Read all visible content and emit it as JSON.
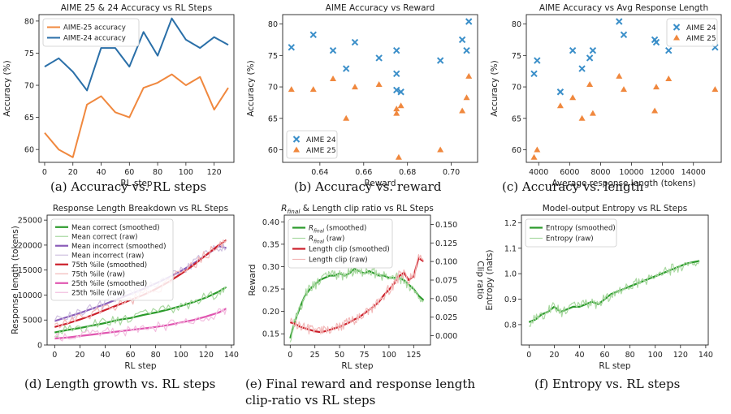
{
  "chart_data": [
    {
      "type": "line",
      "title": "AIME 25 & 24 Accuracy vs RL Steps",
      "xlabel": "RL step",
      "ylabel": "Accuracy (%)",
      "xlim": [
        -4,
        134
      ],
      "ylim": [
        58,
        81
      ],
      "xticks": [
        0,
        20,
        40,
        60,
        80,
        100,
        120
      ],
      "yticks": [
        60,
        65,
        70,
        75,
        80
      ],
      "legend": "top-left",
      "x": [
        0,
        10,
        20,
        30,
        40,
        50,
        60,
        70,
        80,
        90,
        100,
        110,
        120,
        130
      ],
      "series": [
        {
          "name": "AIME-25 accuracy",
          "color": "#f0883e",
          "values": [
            62.6,
            60.0,
            58.8,
            67.0,
            68.3,
            65.8,
            65.0,
            69.6,
            70.4,
            71.7,
            70.0,
            71.3,
            66.2,
            69.6
          ]
        },
        {
          "name": "AIME-24 accuracy",
          "color": "#2a6fa8",
          "values": [
            72.9,
            74.2,
            72.1,
            69.2,
            75.8,
            75.8,
            72.9,
            78.3,
            74.6,
            80.4,
            77.1,
            75.8,
            77.5,
            76.3
          ]
        }
      ],
      "caption": "(a) Accuracy vs. RL steps"
    },
    {
      "type": "scatter",
      "title": "AIME Accuracy vs Reward",
      "xlabel": "Reward",
      "ylabel": "Accuracy (%)",
      "xlim": [
        0.623,
        0.712
      ],
      "ylim": [
        58,
        81.5
      ],
      "xticks": [
        0.64,
        0.66,
        0.68,
        0.7
      ],
      "xtick_labels": [
        "0.64",
        "0.66",
        "0.68",
        "0.70"
      ],
      "yticks": [
        60,
        65,
        70,
        75,
        80
      ],
      "legend": "bottom-left",
      "series": [
        {
          "name": "AIME 24",
          "marker": "x",
          "color": "#3b8fc9",
          "x": [
            0.627,
            0.637,
            0.646,
            0.652,
            0.656,
            0.667,
            0.675,
            0.675,
            0.677,
            0.695,
            0.705,
            0.707,
            0.708,
            0.675
          ],
          "y": [
            76.3,
            78.3,
            75.8,
            72.9,
            77.1,
            74.6,
            75.8,
            72.1,
            69.2,
            74.2,
            77.5,
            75.8,
            80.4,
            69.5
          ]
        },
        {
          "name": "AIME 25",
          "marker": "^",
          "color": "#f0883e",
          "x": [
            0.627,
            0.637,
            0.646,
            0.652,
            0.656,
            0.667,
            0.675,
            0.676,
            0.677,
            0.695,
            0.705,
            0.707,
            0.708,
            0.675
          ],
          "y": [
            69.6,
            69.6,
            71.3,
            65.0,
            70.0,
            70.4,
            65.8,
            58.8,
            67.0,
            60.0,
            66.2,
            68.3,
            71.7,
            66.5
          ]
        }
      ],
      "caption": "(b) Accuracy vs. reward"
    },
    {
      "type": "scatter",
      "title": "AIME Accuracy vs Avg Response Length",
      "xlabel": "Average response length (tokens)",
      "ylabel": "Accuracy (%)",
      "xlim": [
        3200,
        15800
      ],
      "ylim": [
        58,
        81.5
      ],
      "xticks": [
        4000,
        6000,
        8000,
        10000,
        12000,
        14000
      ],
      "xtick_labels": [
        "4000",
        "6000",
        "8000",
        "10000",
        "12000",
        "14000"
      ],
      "yticks": [
        60,
        65,
        70,
        75,
        80
      ],
      "legend": "top-right",
      "series": [
        {
          "name": "AIME 24",
          "marker": "x",
          "color": "#3b8fc9",
          "x": [
            3700,
            3900,
            5400,
            6200,
            6800,
            7300,
            7500,
            9200,
            9500,
            11500,
            11600,
            12400,
            15400
          ],
          "y": [
            72.1,
            74.2,
            69.2,
            75.8,
            72.9,
            74.6,
            75.8,
            80.4,
            78.3,
            77.5,
            77.1,
            75.8,
            76.3
          ]
        },
        {
          "name": "AIME 25",
          "marker": "^",
          "color": "#f0883e",
          "x": [
            3700,
            3900,
            5400,
            6200,
            6800,
            7300,
            7500,
            9200,
            9500,
            11500,
            11600,
            12400,
            15400
          ],
          "y": [
            58.8,
            60.0,
            67.0,
            68.3,
            65.0,
            70.4,
            65.8,
            71.7,
            69.6,
            66.2,
            70.0,
            71.3,
            69.6
          ]
        }
      ],
      "caption": "(c) Accuracy vs. length"
    },
    {
      "type": "line",
      "title": "Response Length Breakdown vs RL Steps",
      "xlabel": "RL step",
      "ylabel": "Response length (tokens)",
      "xlim": [
        -6,
        142
      ],
      "ylim": [
        0,
        26000
      ],
      "xticks": [
        0,
        20,
        40,
        60,
        80,
        100,
        120,
        140
      ],
      "yticks": [
        0,
        5000,
        10000,
        15000,
        20000,
        25000
      ],
      "legend": "top-left",
      "x": [
        0,
        10,
        20,
        30,
        40,
        50,
        60,
        70,
        80,
        90,
        100,
        110,
        120,
        130,
        136
      ],
      "series": [
        {
          "name": "Mean correct (smoothed)",
          "color": "#2a9a2a",
          "width": 2.2,
          "values": [
            2500,
            3000,
            3400,
            3900,
            4400,
            5000,
            5400,
            6000,
            6500,
            7100,
            7800,
            8600,
            9500,
            10700,
            11600
          ]
        },
        {
          "name": "Mean correct (raw)",
          "color": "#a8d8a0",
          "width": 1.2,
          "noisy": true,
          "values": [
            2500,
            3000,
            3400,
            3900,
            4400,
            5000,
            5400,
            6000,
            6500,
            7100,
            7800,
            8600,
            9500,
            10700,
            11600
          ]
        },
        {
          "name": "Mean incorrect (smoothed)",
          "color": "#8a5cb8",
          "width": 2.2,
          "values": [
            4800,
            5600,
            6400,
            7300,
            8200,
            9200,
            10200,
            11200,
            12300,
            13500,
            14800,
            16300,
            18000,
            19800,
            19400
          ]
        },
        {
          "name": "Mean incorrect (raw)",
          "color": "#cfc0e0",
          "width": 1.2,
          "noisy": true,
          "values": [
            4800,
            5600,
            6400,
            7300,
            8200,
            9200,
            10200,
            11200,
            12300,
            13500,
            14800,
            16300,
            18000,
            19800,
            19400
          ]
        },
        {
          "name": "75th %ile (smoothed)",
          "color": "#cc1f2a",
          "width": 2.2,
          "values": [
            3600,
            4300,
            5100,
            6000,
            7000,
            8000,
            9000,
            10000,
            11200,
            12600,
            14200,
            16000,
            18000,
            20000,
            21000
          ]
        },
        {
          "name": "75th %ile (raw)",
          "color": "#f2b7b7",
          "width": 1.2,
          "noisy": true,
          "values": [
            3600,
            4300,
            5100,
            6000,
            7000,
            8000,
            9000,
            10000,
            11200,
            12600,
            14200,
            16000,
            18000,
            20000,
            21000
          ]
        },
        {
          "name": "25th %ile (smoothed)",
          "color": "#e055b0",
          "width": 2.2,
          "values": [
            1300,
            1500,
            1800,
            2100,
            2400,
            2700,
            3000,
            3300,
            3600,
            4000,
            4500,
            5000,
            5700,
            6500,
            7300
          ]
        },
        {
          "name": "25th %ile (raw)",
          "color": "#f3bfe0",
          "width": 1.2,
          "noisy": true,
          "values": [
            1300,
            1500,
            1800,
            2100,
            2400,
            2700,
            3000,
            3300,
            3600,
            4000,
            4500,
            5000,
            5700,
            6500,
            7300
          ]
        }
      ],
      "caption": "(d) Length growth vs. RL steps"
    },
    {
      "type": "line",
      "title": "R_final & Length clip ratio vs RL Steps",
      "title_rich": [
        "R",
        "final",
        " & Length clip ratio vs RL Steps"
      ],
      "xlabel": "RL step",
      "ylabel": "Reward",
      "ylabel_right": "Clip ratio",
      "xlim": [
        -6,
        142
      ],
      "ylim": [
        0.125,
        0.415
      ],
      "ylim_right": [
        -0.0125,
        0.1625
      ],
      "xticks": [
        0,
        25,
        50,
        75,
        100,
        125
      ],
      "yticks": [
        0.15,
        0.2,
        0.25,
        0.3,
        0.35,
        0.4
      ],
      "ytick_labels": [
        "0.15",
        "0.20",
        "0.25",
        "0.30",
        "0.35",
        "0.40"
      ],
      "yticks_right": [
        0.0,
        0.025,
        0.05,
        0.075,
        0.1,
        0.125,
        0.15
      ],
      "ytick_labels_right": [
        "0.000",
        "0.025",
        "0.050",
        "0.075",
        "0.100",
        "0.125",
        "0.150"
      ],
      "legend": "top-left",
      "x": [
        0,
        5,
        10,
        15,
        20,
        25,
        30,
        35,
        40,
        45,
        50,
        55,
        60,
        65,
        70,
        75,
        80,
        85,
        90,
        95,
        100,
        105,
        110,
        115,
        120,
        125,
        130,
        135
      ],
      "series": [
        {
          "name": "R_final (smoothed)",
          "label_rich": [
            "R",
            "final",
            " (smoothed)"
          ],
          "axis": "left",
          "color": "#2a9a2a",
          "width": 2.2,
          "values": [
            0.14,
            0.18,
            0.21,
            0.235,
            0.25,
            0.26,
            0.27,
            0.275,
            0.28,
            0.28,
            0.285,
            0.28,
            0.285,
            0.295,
            0.29,
            0.285,
            0.29,
            0.285,
            0.28,
            0.28,
            0.275,
            0.275,
            0.275,
            0.27,
            0.26,
            0.25,
            0.235,
            0.225
          ]
        },
        {
          "name": "R_final (raw)",
          "label_rich": [
            "R",
            "final",
            " (raw)"
          ],
          "axis": "left",
          "color": "#a8d8a0",
          "width": 1.2,
          "noisy": true,
          "values": [
            0.14,
            0.18,
            0.21,
            0.235,
            0.25,
            0.26,
            0.27,
            0.275,
            0.28,
            0.28,
            0.285,
            0.28,
            0.285,
            0.295,
            0.29,
            0.285,
            0.29,
            0.285,
            0.28,
            0.28,
            0.275,
            0.275,
            0.275,
            0.27,
            0.26,
            0.25,
            0.235,
            0.225
          ]
        },
        {
          "name": "Length clip (smoothed)",
          "axis": "right",
          "color": "#cc1f2a",
          "width": 2.2,
          "values": [
            0.018,
            0.016,
            0.012,
            0.01,
            0.008,
            0.006,
            0.005,
            0.006,
            0.008,
            0.01,
            0.012,
            0.015,
            0.018,
            0.022,
            0.025,
            0.03,
            0.035,
            0.04,
            0.046,
            0.055,
            0.062,
            0.07,
            0.08,
            0.085,
            0.075,
            0.08,
            0.105,
            0.1
          ]
        },
        {
          "name": "Length clip (raw)",
          "axis": "right",
          "color": "#f2b7b7",
          "width": 1.2,
          "noisy": true,
          "values": [
            0.018,
            0.016,
            0.012,
            0.01,
            0.008,
            0.006,
            0.005,
            0.006,
            0.008,
            0.01,
            0.012,
            0.015,
            0.018,
            0.022,
            0.025,
            0.03,
            0.035,
            0.04,
            0.046,
            0.055,
            0.062,
            0.07,
            0.08,
            0.085,
            0.075,
            0.08,
            0.105,
            0.1
          ]
        }
      ],
      "caption": "(e) Final reward and response length clip-ratio vs RL steps"
    },
    {
      "type": "line",
      "title": "Model-output Entropy vs RL Steps",
      "xlabel": "RL step",
      "ylabel": "Entropy (nats)",
      "xlim": [
        -6,
        142
      ],
      "ylim": [
        0.72,
        1.23
      ],
      "xticks": [
        0,
        20,
        40,
        60,
        80,
        100,
        120,
        140
      ],
      "yticks": [
        0.8,
        0.9,
        1.0,
        1.1,
        1.2
      ],
      "ytick_labels": [
        "0.8",
        "0.9",
        "1.0",
        "1.1",
        "1.2"
      ],
      "legend": "top-left",
      "x": [
        0,
        5,
        10,
        15,
        20,
        25,
        30,
        35,
        40,
        45,
        50,
        55,
        60,
        65,
        70,
        75,
        80,
        85,
        90,
        95,
        100,
        105,
        110,
        115,
        120,
        125,
        130,
        135
      ],
      "series": [
        {
          "name": "Entropy (smoothed)",
          "color": "#2a9a2a",
          "width": 2.2,
          "values": [
            0.81,
            0.82,
            0.84,
            0.85,
            0.87,
            0.85,
            0.86,
            0.87,
            0.87,
            0.88,
            0.89,
            0.88,
            0.9,
            0.92,
            0.93,
            0.94,
            0.95,
            0.96,
            0.97,
            0.98,
            0.99,
            1.0,
            1.01,
            1.02,
            1.03,
            1.04,
            1.045,
            1.05
          ]
        },
        {
          "name": "Entropy (raw)",
          "color": "#a8d8a0",
          "width": 1.2,
          "noisy": true,
          "values": [
            0.81,
            0.82,
            0.84,
            0.85,
            0.87,
            0.85,
            0.86,
            0.87,
            0.87,
            0.88,
            0.89,
            0.88,
            0.9,
            0.92,
            0.93,
            0.94,
            0.95,
            0.96,
            0.97,
            0.98,
            0.99,
            1.0,
            1.01,
            1.02,
            1.03,
            1.04,
            1.045,
            1.05
          ]
        }
      ],
      "caption": "(f) Entropy vs. RL steps"
    }
  ]
}
